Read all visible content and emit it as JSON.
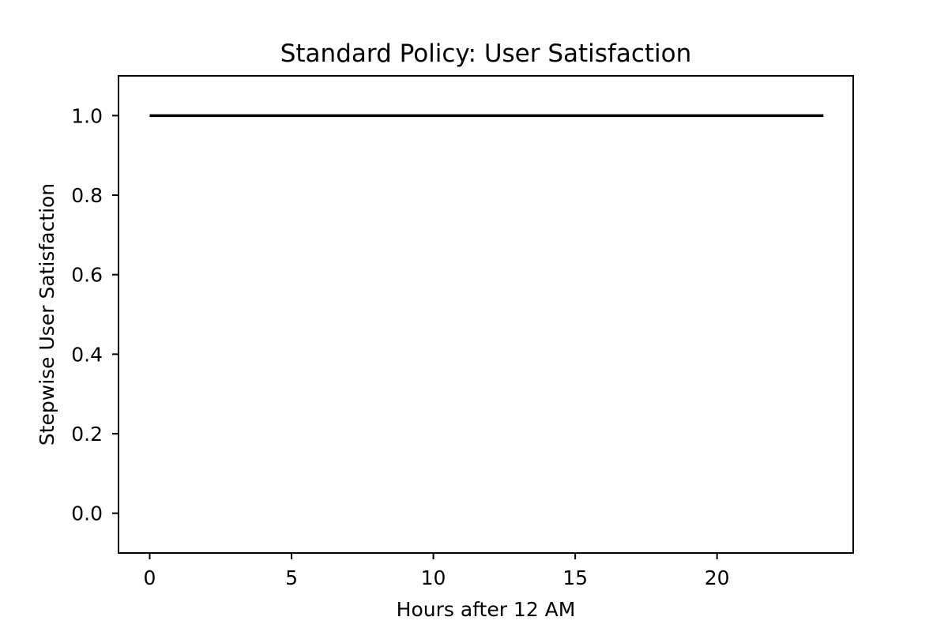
{
  "chart_data": {
    "type": "line",
    "title": "Standard Policy: User Satisfaction",
    "xlabel": "Hours after 12 AM",
    "ylabel": "Stepwise User Satisfaction",
    "xlim": [
      -1.1,
      24.8
    ],
    "ylim": [
      -0.1,
      1.1
    ],
    "xticks": [
      0,
      5,
      10,
      15,
      20
    ],
    "xtick_labels": [
      "0",
      "5",
      "10",
      "15",
      "20"
    ],
    "yticks": [
      0.0,
      0.2,
      0.4,
      0.6,
      0.8,
      1.0
    ],
    "ytick_labels": [
      "0.0",
      "0.2",
      "0.4",
      "0.6",
      "0.8",
      "1.0"
    ],
    "grid": false,
    "series": [
      {
        "color": "#000000",
        "x": [
          0,
          1,
          2,
          3,
          4,
          5,
          6,
          7,
          8,
          9,
          10,
          11,
          12,
          13,
          14,
          15,
          16,
          17,
          18,
          19,
          20,
          21,
          22,
          23,
          23.75
        ],
        "y": [
          1,
          1,
          1,
          1,
          1,
          1,
          1,
          1,
          1,
          1,
          1,
          1,
          1,
          1,
          1,
          1,
          1,
          1,
          1,
          1,
          1,
          1,
          1,
          1,
          1
        ]
      }
    ]
  }
}
